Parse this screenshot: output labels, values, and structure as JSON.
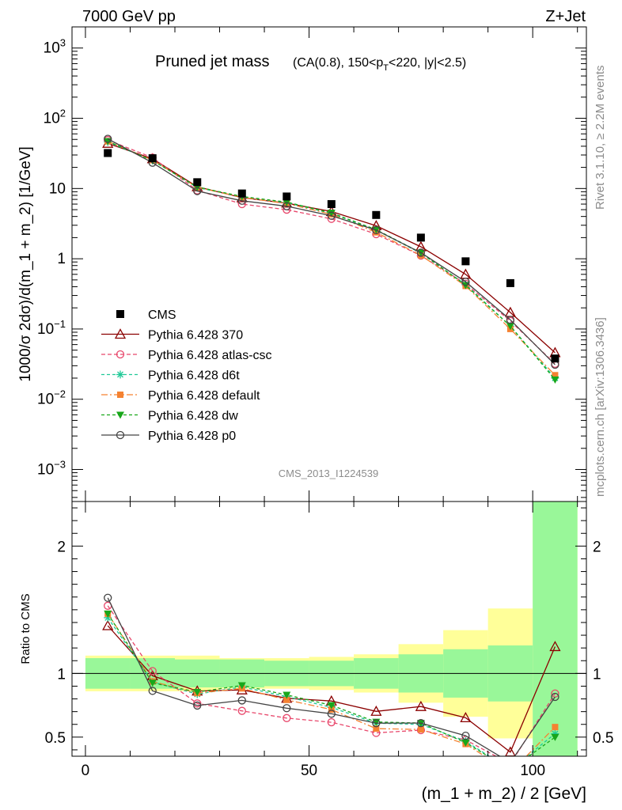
{
  "header": {
    "left": "7000 GeV pp",
    "right": "Z+Jet"
  },
  "side": {
    "rivet": "Rivet 3.1.10, ≥ 2.2M events",
    "mcplots": "mcplots.cern.ch [arXiv:1306.3436]"
  },
  "chart_data": {
    "type": "line",
    "title_main": "Pruned jet mass",
    "title_sub": "(CA(0.8), 150<p_T<220, |y|<2.5)",
    "title_sub_parts": [
      "(CA(0.8), 150<p",
      "T",
      "<220, |y|<2.5)"
    ],
    "analysis_id": "CMS_2013_I1224539",
    "ylabel_top": "1000/σ 2dσ)/d(m_1 + m_2) [1/GeV]",
    "ylabel_bottom": "Ratio to CMS",
    "xlabel": "(m_1 + m_2) / 2 [GeV]",
    "xlim": [
      -3,
      112
    ],
    "ylim_top": [
      0.00035,
      2000
    ],
    "ylim_bottom": [
      0.35,
      2.35
    ],
    "yticks_top": [
      {
        "value": 1000,
        "base": "10",
        "exp": "3"
      },
      {
        "value": 100,
        "base": "10",
        "exp": "2"
      },
      {
        "value": 10,
        "base": "10",
        "exp": ""
      },
      {
        "value": 1,
        "base": "1",
        "exp": ""
      },
      {
        "value": 0.1,
        "base": "10",
        "exp": "−1"
      },
      {
        "value": 0.01,
        "base": "10",
        "exp": "−2"
      },
      {
        "value": 0.001,
        "base": "10",
        "exp": "−3"
      }
    ],
    "yticks_bottom": [
      {
        "value": 2,
        "label": "2"
      },
      {
        "value": 1,
        "label": "1"
      },
      {
        "value": 0.5,
        "label": "0.5"
      }
    ],
    "xticks": [
      {
        "value": 0,
        "label": "0"
      },
      {
        "value": 50,
        "label": "50"
      },
      {
        "value": 100,
        "label": "100"
      }
    ],
    "x": [
      5,
      15,
      25,
      35,
      45,
      55,
      65,
      75,
      85,
      95,
      105
    ],
    "bin_edges": [
      0,
      10,
      20,
      30,
      40,
      50,
      60,
      70,
      80,
      90,
      100,
      110
    ],
    "data": {
      "name": "CMS",
      "values": [
        32,
        27,
        12.3,
        8.5,
        7.7,
        6.0,
        4.2,
        2.0,
        0.92,
        0.45,
        0.038
      ],
      "band_inner": [
        0.12,
        0.12,
        0.11,
        0.11,
        0.1,
        0.1,
        0.12,
        0.15,
        0.19,
        0.22,
        2.0
      ],
      "band_outer": [
        0.14,
        0.14,
        0.14,
        0.12,
        0.12,
        0.13,
        0.15,
        0.23,
        0.34,
        0.51,
        2.0
      ]
    },
    "series": [
      {
        "name": "Pythia 6.428 370",
        "color": "#8b0000",
        "dash": "",
        "marker": "triangle-open",
        "values": [
          44,
          26.5,
          10.6,
          7.4,
          6.2,
          4.7,
          2.95,
          1.48,
          0.6,
          0.172,
          0.046
        ]
      },
      {
        "name": "Pythia 6.428 atlas-csc",
        "color": "#e8476b",
        "dash": "5,3",
        "marker": "circle-open",
        "values": [
          49,
          27.5,
          9.4,
          6.0,
          5.0,
          3.7,
          2.24,
          1.11,
          0.44,
          0.13,
          0.032
        ]
      },
      {
        "name": "Pythia 6.428 d6t",
        "color": "#20c997",
        "dash": "4,3",
        "marker": "star",
        "values": [
          46,
          25.2,
          10.3,
          7.6,
          6.3,
          4.4,
          2.56,
          1.2,
          0.43,
          0.11,
          0.02
        ]
      },
      {
        "name": "Pythia 6.428 default",
        "color": "#f58231",
        "dash": "8,3,2,3",
        "marker": "square",
        "values": [
          47,
          25.3,
          10.4,
          7.5,
          6.1,
          4.3,
          2.38,
          1.12,
          0.41,
          0.1,
          0.022
        ]
      },
      {
        "name": "Pythia 6.428 dw",
        "color": "#18a71a",
        "dash": "4,3",
        "marker": "triangle-down",
        "values": [
          47,
          25.0,
          10.5,
          7.7,
          6.4,
          4.5,
          2.6,
          1.22,
          0.42,
          0.11,
          0.019
        ]
      },
      {
        "name": "Pythia 6.428 p0",
        "color": "#444444",
        "dash": "",
        "marker": "circle-open",
        "values": [
          51,
          23.3,
          9.2,
          6.7,
          5.6,
          4.1,
          2.56,
          1.22,
          0.47,
          0.135,
          0.031
        ]
      }
    ]
  }
}
